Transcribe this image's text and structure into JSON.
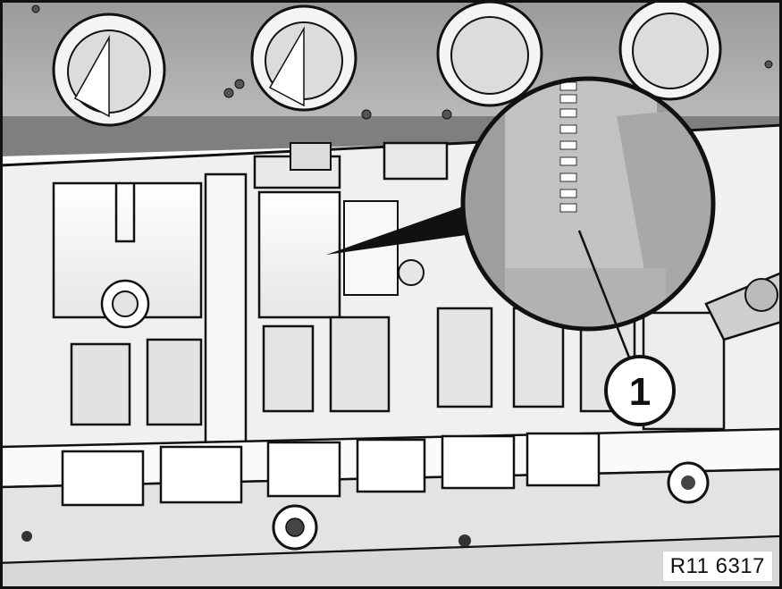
{
  "callout": {
    "number": "1"
  },
  "reference": {
    "code": "R11 6317"
  },
  "colors": {
    "outline": "#111111",
    "metal_light": "#f2f2f2",
    "metal_mid": "#bdbdbd",
    "metal_dark": "#8c8c8c",
    "pointer": "#111111"
  }
}
